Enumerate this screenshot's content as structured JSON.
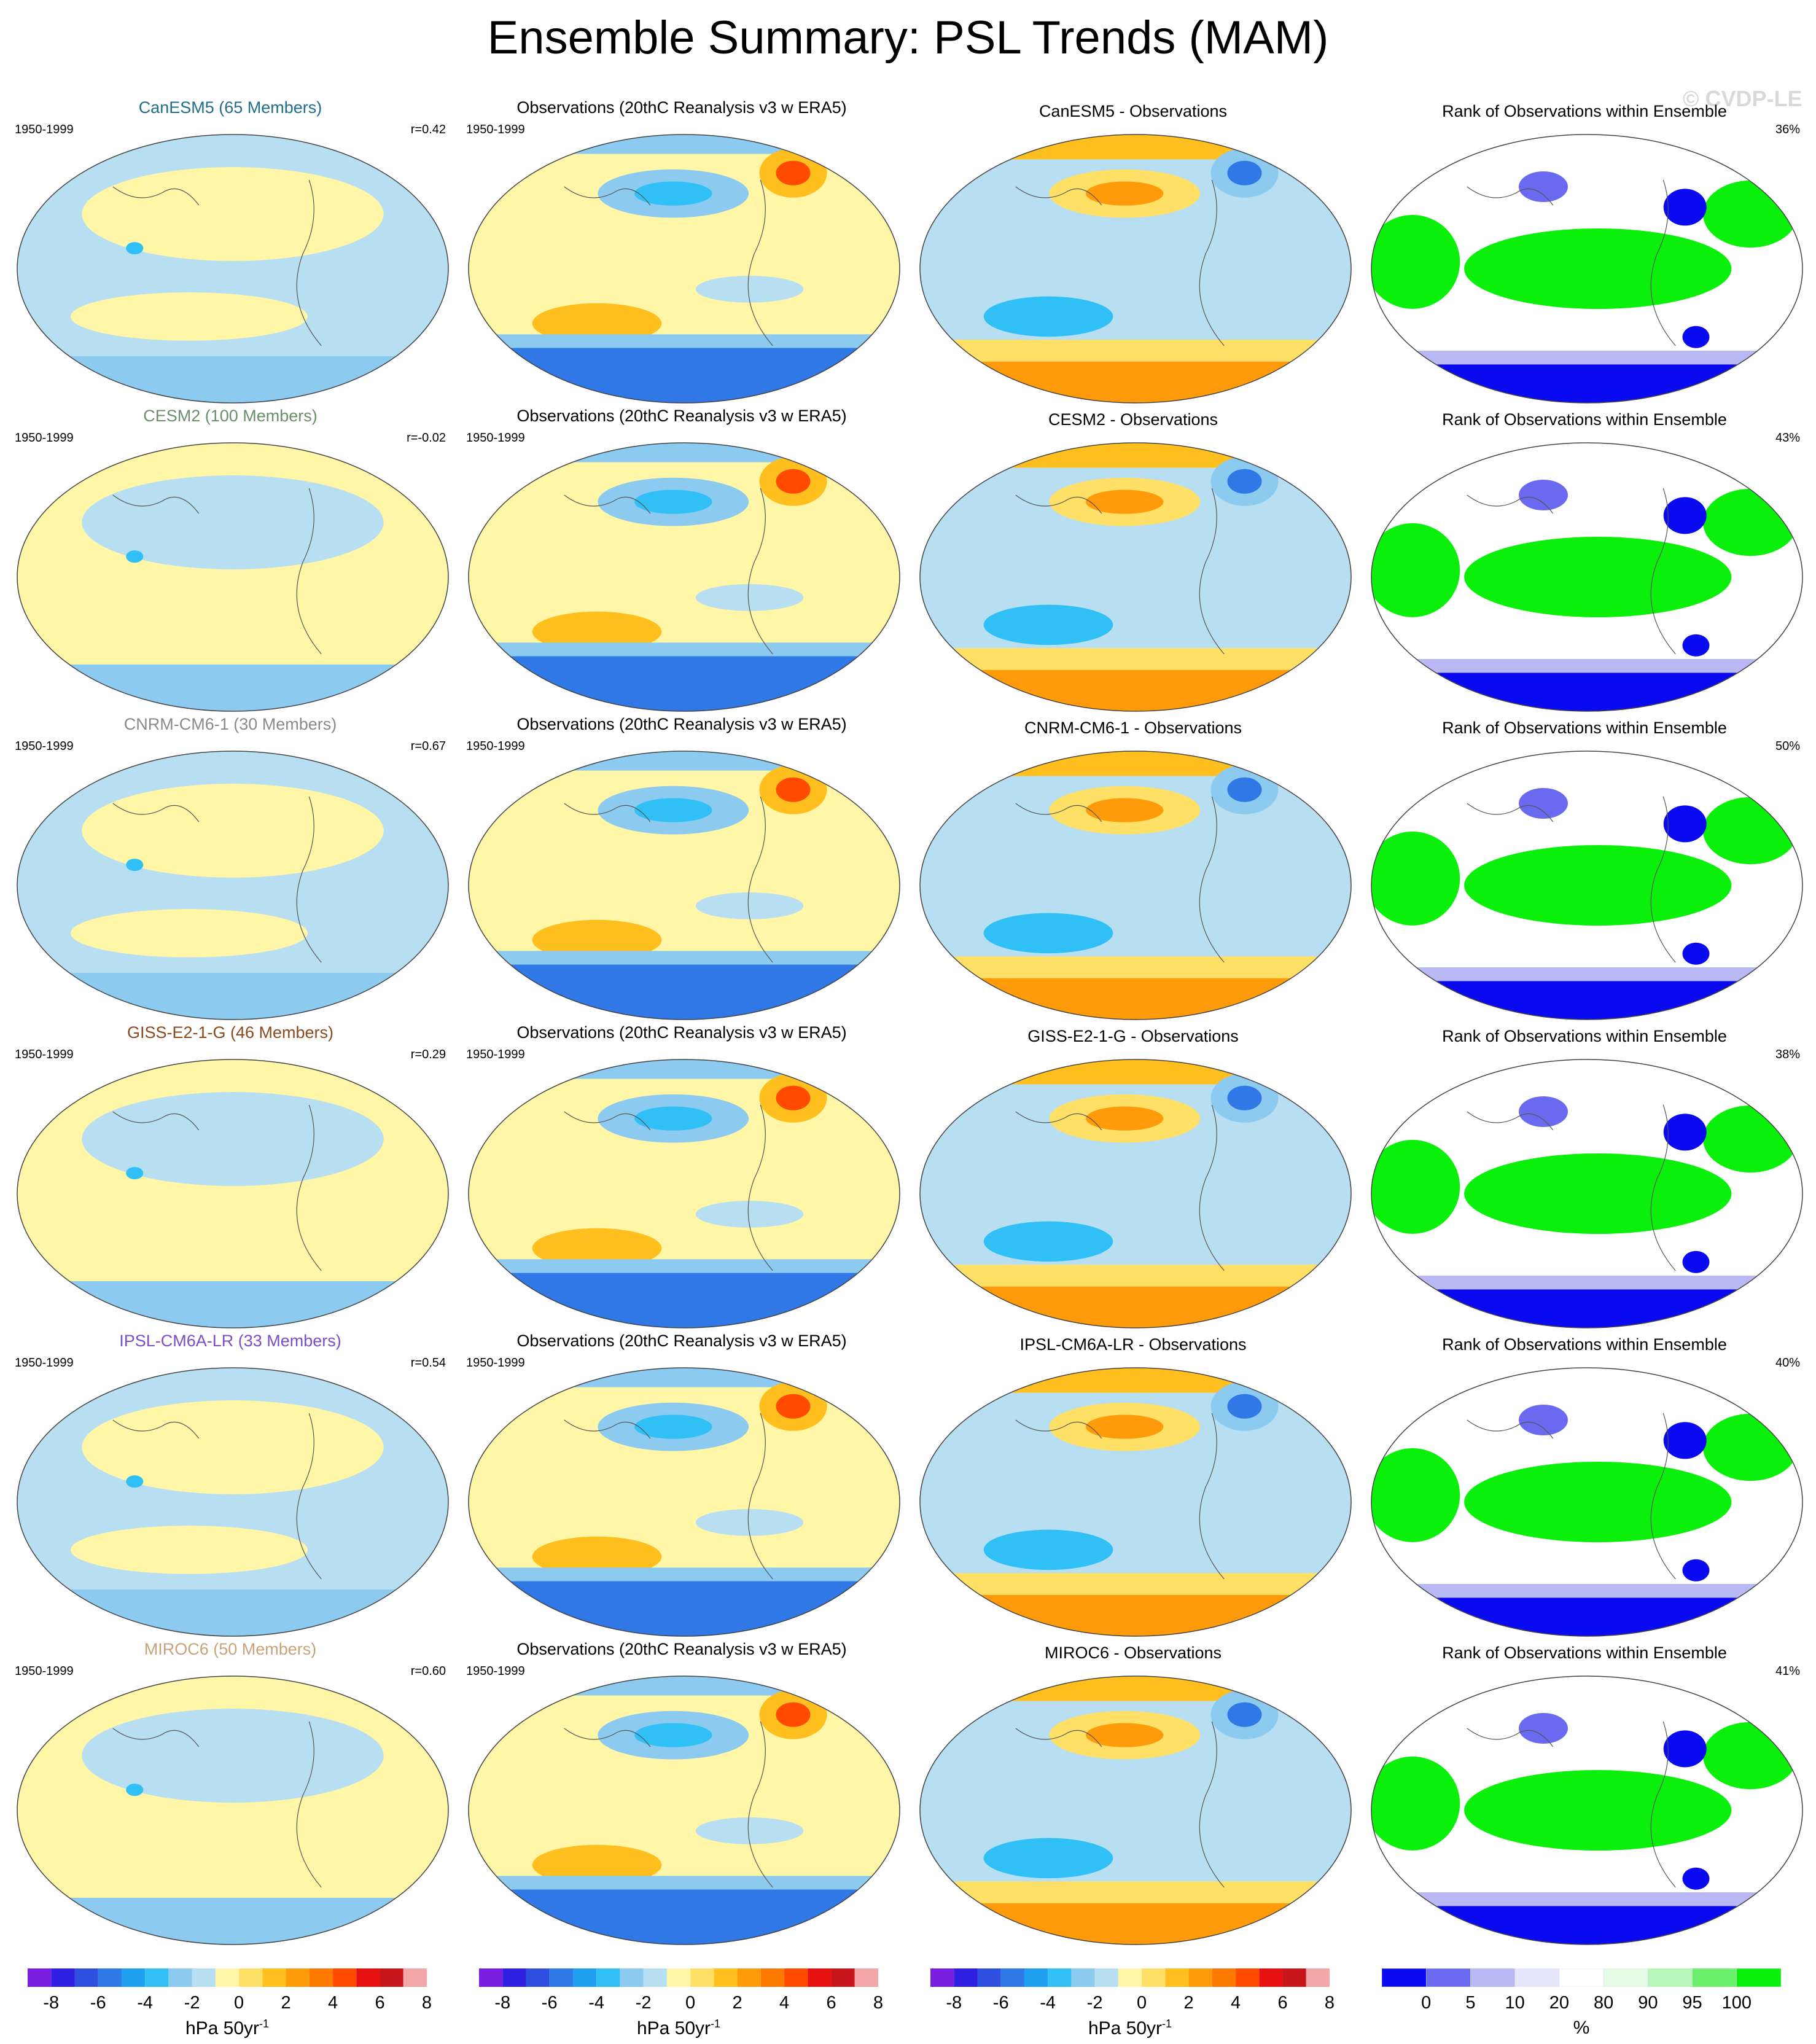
{
  "title": "Ensemble Summary: PSL Trends (MAM)",
  "watermark": "© CVDP-LE",
  "period": "1950-1999",
  "obs_title": "Observations (20thC Reanalysis v3 w ERA5)",
  "rank_title": "Rank of Observations within Ensemble",
  "rows": [
    {
      "model": "CanESM5 (65 Members)",
      "model_color": "#1f6e8c",
      "r": "r=0.42",
      "diff": "CanESM5 - Observations",
      "pct": "36%"
    },
    {
      "model": "CESM2 (100 Members)",
      "model_color": "#6a8f6a",
      "r": "r=-0.02",
      "diff": "CESM2 - Observations",
      "pct": "43%"
    },
    {
      "model": "CNRM-CM6-1 (30 Members)",
      "model_color": "#8a8a8a",
      "r": "r=0.67",
      "diff": "CNRM-CM6-1 - Observations",
      "pct": "50%"
    },
    {
      "model": "GISS-E2-1-G (46 Members)",
      "model_color": "#8a4a1e",
      "r": "r=0.29",
      "diff": "GISS-E2-1-G - Observations",
      "pct": "38%"
    },
    {
      "model": "IPSL-CM6A-LR (33 Members)",
      "model_color": "#7b4fc7",
      "r": "r=0.54",
      "diff": "IPSL-CM6A-LR - Observations",
      "pct": "40%"
    },
    {
      "model": "MIROC6 (50 Members)",
      "model_color": "#c9a27a",
      "r": "r=0.60",
      "diff": "MIROC6 - Observations",
      "pct": "41%"
    }
  ],
  "colorbar_trend": {
    "colors": [
      "#7a1fe0",
      "#2f1fe0",
      "#2f4fe0",
      "#2f78e6",
      "#1fa0f0",
      "#30c0f5",
      "#8ccaf0",
      "#b8def2",
      "#fff6a8",
      "#ffe066",
      "#ffbf1f",
      "#ff9b0a",
      "#ff7a00",
      "#ff4a00",
      "#e61212",
      "#c7151c",
      "#f4a7a7"
    ],
    "labels": [
      "-8",
      "-6",
      "-4",
      "-2",
      "0",
      "2",
      "4",
      "6",
      "8"
    ],
    "unit": "hPa 50yr",
    "unit_sup": "-1"
  },
  "colorbar_rank": {
    "colors": [
      "#0a0af0",
      "#6a6af0",
      "#b8b8f5",
      "#e6e6fa",
      "#ffffff",
      "#e6fbe6",
      "#b8f5b8",
      "#6af06a",
      "#0af00a"
    ],
    "labels": [
      "0",
      "5",
      "10",
      "20",
      "80",
      "90",
      "95",
      "100"
    ],
    "unit": "%"
  }
}
